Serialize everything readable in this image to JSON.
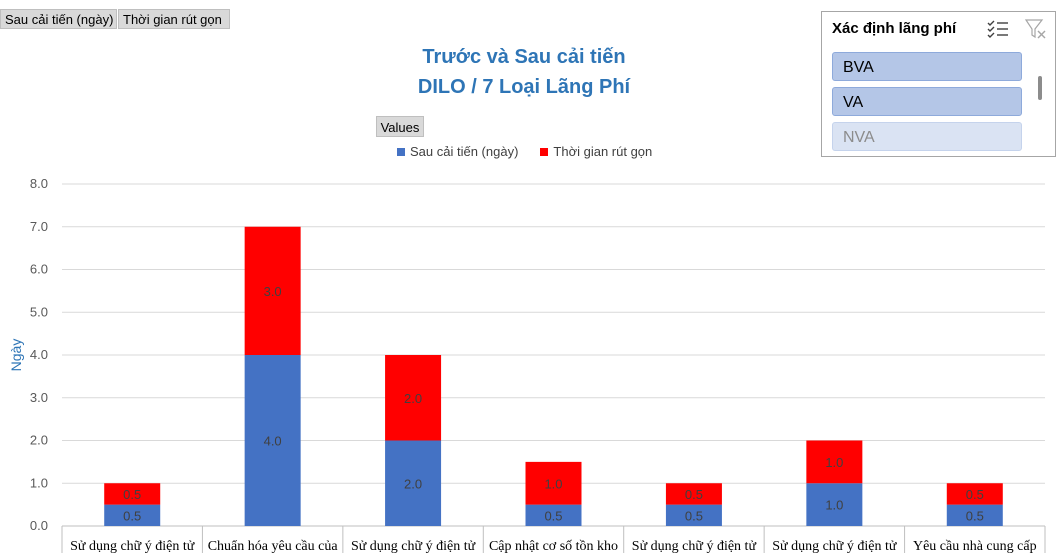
{
  "field_buttons": [
    "Sau cải tiến (ngày)",
    "Thời gian rút gọn"
  ],
  "values_button": "Values",
  "slicer": {
    "title": "Xác định lãng phí",
    "items": [
      {
        "label": "BVA",
        "selected": true
      },
      {
        "label": "VA",
        "selected": true
      },
      {
        "label": "NVA",
        "selected": false
      }
    ],
    "multiselect_icon": "multi-select-icon",
    "clear_filter_icon": "clear-filter-icon"
  },
  "colors": {
    "after": "#4472c4",
    "reduced": "#ff0000",
    "title": "#2e75b6"
  },
  "chart_data": {
    "type": "bar",
    "stacked": true,
    "title": "Trước và Sau cải tiến",
    "subtitle": "DILO / 7 Loại Lãng Phí",
    "ylabel": "Ngày",
    "xlabel": "",
    "ylim": [
      0,
      8
    ],
    "yticks": [
      "0.0",
      "1.0",
      "2.0",
      "3.0",
      "4.0",
      "5.0",
      "6.0",
      "7.0",
      "8.0"
    ],
    "grid": true,
    "legend_position": "top",
    "categories": [
      "Sử dụng chữ ý điện tử",
      "Chuẩn hóa yêu cầu của",
      "Sử dụng chữ ý điện tử",
      "Cập nhật cơ số tồn kho",
      "Sử dụng chữ ý điện tử",
      "Sử dụng chữ ý điện tử",
      "Yêu cầu nhà cung cấp"
    ],
    "series": [
      {
        "name": "Sau cải tiến (ngày)",
        "values": [
          0.5,
          4.0,
          2.0,
          0.5,
          0.5,
          1.0,
          0.5
        ],
        "labels": [
          "0.5",
          "4.0",
          "2.0",
          "0.5",
          "0.5",
          "1.0",
          "0.5"
        ]
      },
      {
        "name": "Thời gian rút gọn",
        "values": [
          0.5,
          3.0,
          2.0,
          1.0,
          0.5,
          1.0,
          0.5
        ],
        "labels": [
          "0.5",
          "3.0",
          "2.0",
          "1.0",
          "0.5",
          "1.0",
          "0.5"
        ]
      }
    ]
  }
}
